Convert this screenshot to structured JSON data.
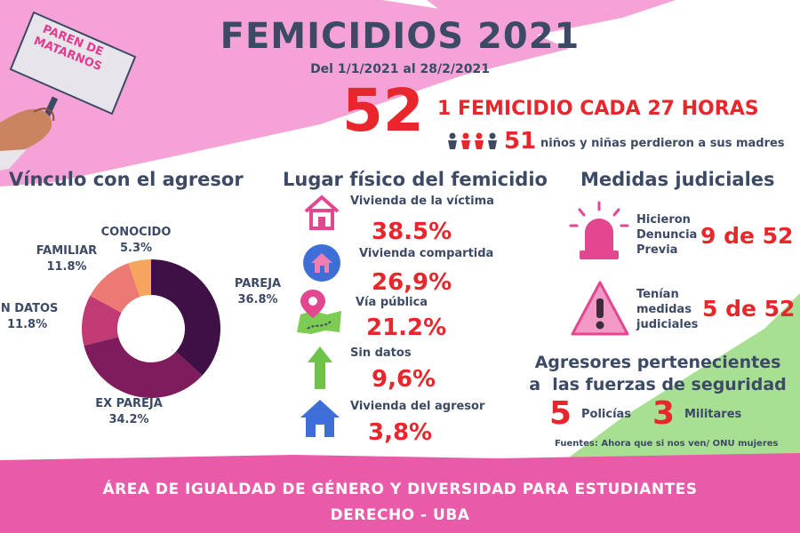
{
  "title": "FEMICIDIOS 2021",
  "subtitle": "Del 1/1/2021 al 28/2/2021",
  "sign": {
    "line1": "PAREN DE",
    "line2": "MATARNOS"
  },
  "total": "52",
  "rate": "1 FEMICIDIO CADA 27 HORAS",
  "orphans": {
    "value": "51",
    "text": "niños y niñas perdieron a sus madres"
  },
  "sections": {
    "vinculo": "Vínculo con el agresor",
    "lugar": "Lugar físico del femicidio",
    "medidas": "Medidas judiciales"
  },
  "chart_data": {
    "type": "pie",
    "title": "Vínculo con el agresor",
    "slices": [
      {
        "label": "PAREJA",
        "value": 36.8,
        "text": "36.8%",
        "color": "#3e1046"
      },
      {
        "label": "EX PAREJA",
        "value": 34.2,
        "text": "34.2%",
        "color": "#7e1c5e"
      },
      {
        "label": "IN DATOS",
        "value": 11.8,
        "text": "11.8%",
        "color": "#c03a74"
      },
      {
        "label": "FAMILIAR",
        "value": 11.8,
        "text": "11.8%",
        "color": "#ec7a74"
      },
      {
        "label": "CONOCIDO",
        "value": 5.3,
        "text": "5.3%",
        "color": "#f6a55e"
      }
    ]
  },
  "lugar": [
    {
      "label": "Vivienda de la víctima",
      "value": "38.5%",
      "icon": "house-icon"
    },
    {
      "label": "Vivienda compartida",
      "value": "26,9%",
      "icon": "house-circle-icon"
    },
    {
      "label": "Vía pública",
      "value": "21.2%",
      "icon": "map-pin-icon"
    },
    {
      "label": "Sin datos",
      "value": "9,6%",
      "icon": "arrow-up-icon"
    },
    {
      "label": "Vivienda del agresor",
      "value": "3,8%",
      "icon": "house-blue-icon"
    }
  ],
  "medidas": [
    {
      "l1": "Hicieron",
      "l2": "Denuncia",
      "l3": "Previa",
      "value": "9 de 52"
    },
    {
      "l1": "Tenían",
      "l2": "medidas",
      "l3": "judiciales",
      "value": "5 de 52"
    }
  ],
  "agresores": {
    "l1": "Agresores pertenecientes",
    "l2": "a  las fuerzas de seguridad",
    "policias_num": "5",
    "policias_label": "Policías",
    "militares_num": "3",
    "militares_label": "Militares"
  },
  "sources": "Fuentes: Ahora que si nos ven/ ONU mujeres",
  "footer": {
    "line1": "ÁREA DE IGUALDAD DE GÉNERO Y DIVERSIDAD PARA ESTUDIANTES",
    "line2": "DERECHO - UBA"
  },
  "colors": {
    "accent": "#e8262b",
    "navy": "#3d4a66",
    "pink": "#f39ad0",
    "magenta": "#e85aa8",
    "green": "#9fdb8a"
  }
}
